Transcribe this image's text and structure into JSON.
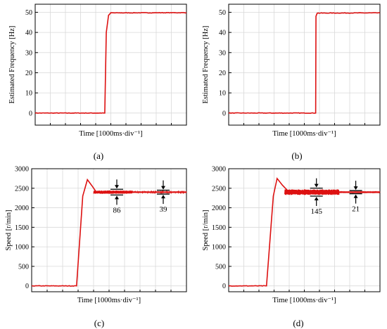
{
  "chart_data": [
    {
      "type": "line",
      "panel_label": "(a)",
      "xlabel": "Time [1000ms·div⁻¹]",
      "ylabel": "Estimated Frequency [Hz]",
      "ylim": [
        -6,
        54
      ],
      "yticks": [
        "0",
        "10",
        "20",
        "30",
        "40",
        "50"
      ],
      "x_divisions": 10,
      "grid": true,
      "series": [
        {
          "color": "#dd1111",
          "x": [
            0,
            4.6,
            4.7,
            4.85,
            5.0,
            10
          ],
          "y": [
            0,
            0,
            40,
            48.5,
            49.7,
            49.8
          ]
        }
      ],
      "annotations": []
    },
    {
      "type": "line",
      "panel_label": "(b)",
      "xlabel": "Time [1000ms·div⁻¹]",
      "ylabel": "Estimated Frequency [Hz]",
      "ylim": [
        -6,
        54
      ],
      "yticks": [
        "0",
        "10",
        "20",
        "30",
        "40",
        "50"
      ],
      "x_divisions": 10,
      "grid": true,
      "series": [
        {
          "color": "#dd1111",
          "x": [
            0,
            5.75,
            5.77,
            5.85,
            10
          ],
          "y": [
            0,
            0,
            48,
            49.6,
            49.7
          ]
        }
      ],
      "annotations": []
    },
    {
      "type": "line",
      "panel_label": "(c)",
      "xlabel": "Time [1000ms·div⁻¹]",
      "ylabel": "Speed [r/min]",
      "ylim": [
        -150,
        3000
      ],
      "yticks": [
        "0",
        "500",
        "1000",
        "1500",
        "2000",
        "2500",
        "3000"
      ],
      "x_divisions": 10,
      "grid": true,
      "series": [
        {
          "color": "#dd1111",
          "x": [
            0,
            2.9,
            3.3,
            3.6,
            3.9,
            4.2,
            4.6,
            5.0,
            6.0,
            10
          ],
          "y": [
            0,
            0,
            2300,
            2720,
            2560,
            2390,
            2380,
            2400,
            2400,
            2400
          ]
        }
      ],
      "ripple": [
        {
          "x0": 4.0,
          "x1": 6.5,
          "amplitude": 86
        },
        {
          "x0": 6.5,
          "x1": 10,
          "amplitude": 39
        }
      ],
      "annotations": [
        {
          "label": "86",
          "x": 5.5
        },
        {
          "label": "39",
          "x": 8.5
        }
      ]
    },
    {
      "type": "line",
      "panel_label": "(d)",
      "xlabel": "Time [1000ms·div⁻¹]",
      "ylabel": "Speed [r/min]",
      "ylim": [
        -150,
        3000
      ],
      "yticks": [
        "0",
        "500",
        "1000",
        "1500",
        "2000",
        "2500",
        "3000"
      ],
      "x_divisions": 10,
      "grid": true,
      "series": [
        {
          "color": "#dd1111",
          "x": [
            0,
            2.5,
            2.95,
            3.2,
            3.55,
            3.9,
            4.3,
            10
          ],
          "y": [
            0,
            0,
            2300,
            2750,
            2580,
            2440,
            2400,
            2400
          ]
        }
      ],
      "ripple": [
        {
          "x0": 3.7,
          "x1": 7.3,
          "amplitude": 145
        },
        {
          "x0": 7.3,
          "x1": 10,
          "amplitude": 21
        }
      ],
      "annotations": [
        {
          "label": "145",
          "x": 5.8
        },
        {
          "label": "21",
          "x": 8.4
        }
      ]
    }
  ]
}
